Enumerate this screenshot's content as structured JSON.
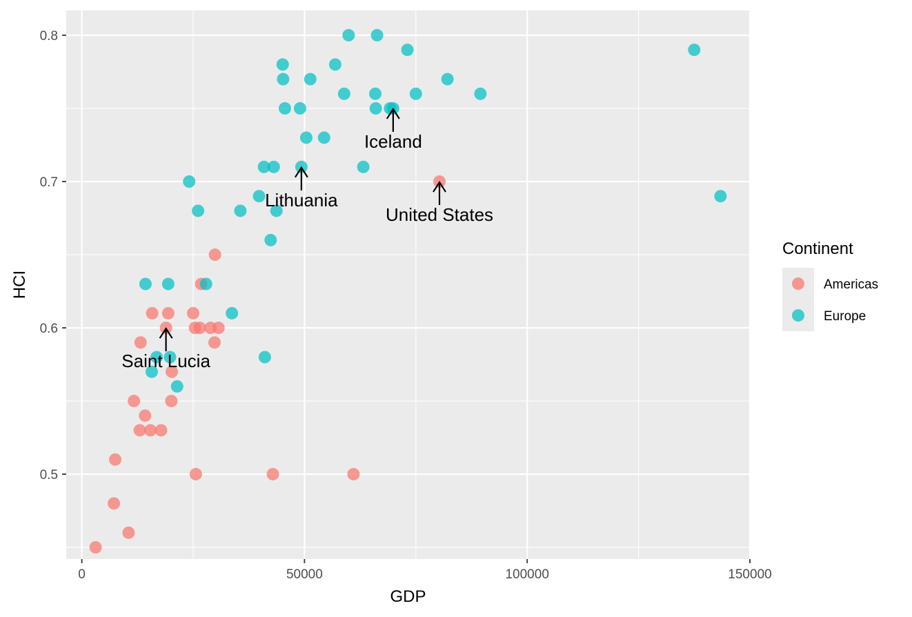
{
  "chart_data": {
    "type": "scatter",
    "xlabel": "GDP",
    "ylabel": "HCI",
    "xlim": [
      -3500,
      150000
    ],
    "ylim": [
      0.442,
      0.817
    ],
    "x_ticks": [
      0,
      50000,
      100000,
      150000
    ],
    "x_tick_labels": [
      "0",
      "50000",
      "100000",
      "150000"
    ],
    "y_ticks": [
      0.5,
      0.6,
      0.7,
      0.8
    ],
    "y_tick_labels": [
      "0.5",
      "0.6",
      "0.7",
      "0.8"
    ],
    "grid": true,
    "legend": {
      "title": "Continent",
      "placement": "right",
      "entries": [
        {
          "name": "Americas",
          "color": "#F8766D"
        },
        {
          "name": "Europe",
          "color": "#00BFC4"
        }
      ]
    },
    "series": [
      {
        "name": "Americas",
        "color": "#F8766D",
        "points": [
          {
            "x": 3100,
            "y": 0.45
          },
          {
            "x": 7200,
            "y": 0.48
          },
          {
            "x": 7500,
            "y": 0.51
          },
          {
            "x": 10500,
            "y": 0.46
          },
          {
            "x": 11700,
            "y": 0.55
          },
          {
            "x": 13000,
            "y": 0.53
          },
          {
            "x": 13200,
            "y": 0.59
          },
          {
            "x": 14200,
            "y": 0.54
          },
          {
            "x": 15400,
            "y": 0.53
          },
          {
            "x": 15800,
            "y": 0.61
          },
          {
            "x": 17800,
            "y": 0.53
          },
          {
            "x": 18900,
            "y": 0.6
          },
          {
            "x": 19400,
            "y": 0.61
          },
          {
            "x": 20100,
            "y": 0.55
          },
          {
            "x": 20200,
            "y": 0.57
          },
          {
            "x": 25000,
            "y": 0.61
          },
          {
            "x": 25400,
            "y": 0.6
          },
          {
            "x": 25600,
            "y": 0.5
          },
          {
            "x": 26500,
            "y": 0.6
          },
          {
            "x": 26800,
            "y": 0.63
          },
          {
            "x": 28900,
            "y": 0.6
          },
          {
            "x": 29800,
            "y": 0.59
          },
          {
            "x": 29900,
            "y": 0.65
          },
          {
            "x": 30700,
            "y": 0.6
          },
          {
            "x": 42900,
            "y": 0.5
          },
          {
            "x": 61000,
            "y": 0.5
          },
          {
            "x": 80300,
            "y": 0.7
          }
        ]
      },
      {
        "name": "Europe",
        "color": "#00BFC4",
        "points": [
          {
            "x": 14300,
            "y": 0.63
          },
          {
            "x": 15700,
            "y": 0.57
          },
          {
            "x": 16800,
            "y": 0.58
          },
          {
            "x": 19400,
            "y": 0.63
          },
          {
            "x": 19800,
            "y": 0.58
          },
          {
            "x": 21400,
            "y": 0.56
          },
          {
            "x": 24100,
            "y": 0.7
          },
          {
            "x": 26100,
            "y": 0.68
          },
          {
            "x": 27900,
            "y": 0.63
          },
          {
            "x": 33700,
            "y": 0.61
          },
          {
            "x": 35600,
            "y": 0.68
          },
          {
            "x": 39800,
            "y": 0.69
          },
          {
            "x": 40900,
            "y": 0.71
          },
          {
            "x": 41100,
            "y": 0.58
          },
          {
            "x": 42400,
            "y": 0.66
          },
          {
            "x": 43100,
            "y": 0.71
          },
          {
            "x": 43700,
            "y": 0.68
          },
          {
            "x": 45100,
            "y": 0.78
          },
          {
            "x": 45200,
            "y": 0.77
          },
          {
            "x": 45600,
            "y": 0.75
          },
          {
            "x": 49000,
            "y": 0.75
          },
          {
            "x": 49300,
            "y": 0.71
          },
          {
            "x": 50400,
            "y": 0.73
          },
          {
            "x": 51300,
            "y": 0.77
          },
          {
            "x": 54400,
            "y": 0.73
          },
          {
            "x": 56900,
            "y": 0.78
          },
          {
            "x": 58900,
            "y": 0.76
          },
          {
            "x": 59900,
            "y": 0.8
          },
          {
            "x": 63200,
            "y": 0.71
          },
          {
            "x": 65900,
            "y": 0.76
          },
          {
            "x": 66000,
            "y": 0.75
          },
          {
            "x": 66300,
            "y": 0.8
          },
          {
            "x": 69200,
            "y": 0.75
          },
          {
            "x": 69900,
            "y": 0.75
          },
          {
            "x": 73100,
            "y": 0.79
          },
          {
            "x": 75000,
            "y": 0.76
          },
          {
            "x": 82100,
            "y": 0.77
          },
          {
            "x": 89500,
            "y": 0.76
          },
          {
            "x": 137500,
            "y": 0.79
          },
          {
            "x": 143400,
            "y": 0.69
          }
        ]
      }
    ],
    "annotations": [
      {
        "text": "Saint Lucia",
        "x": 18900,
        "y": 0.6
      },
      {
        "text": "Lithuania",
        "x": 49300,
        "y": 0.71
      },
      {
        "text": "Iceland",
        "x": 69900,
        "y": 0.75
      },
      {
        "text": "United States",
        "x": 80300,
        "y": 0.7
      }
    ]
  }
}
